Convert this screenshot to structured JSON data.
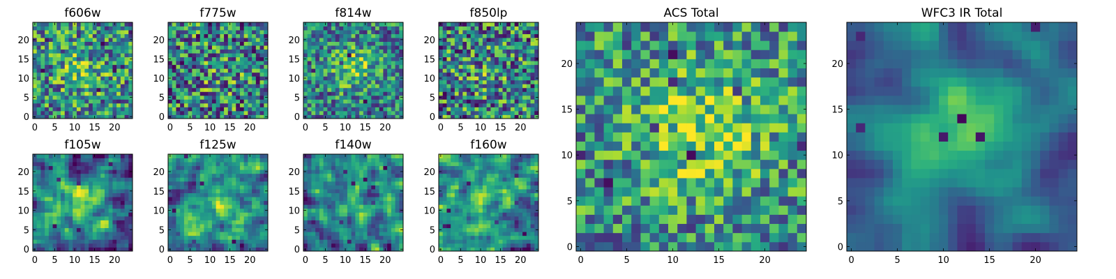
{
  "figure": {
    "colormap": "viridis",
    "colors": {
      "background": "#ffffff",
      "axis": "#000000"
    }
  },
  "chart_data": [
    {
      "id": "f606w",
      "type": "heatmap",
      "title": "f606w",
      "grid_size": 25,
      "xlim": [
        -0.5,
        24.5
      ],
      "ylim": [
        -0.5,
        24.5
      ],
      "xticks": [
        0,
        5,
        10,
        15,
        20
      ],
      "yticks": [
        0,
        5,
        10,
        15,
        20
      ],
      "pattern": {
        "seed": 11,
        "bias": 0.6,
        "noise": 0.4,
        "smooth": 0,
        "blob": [
          12,
          12,
          4,
          0.2
        ],
        "dark_cells": 18
      }
    },
    {
      "id": "f775w",
      "type": "heatmap",
      "title": "f775w",
      "grid_size": 25,
      "xlim": [
        -0.5,
        24.5
      ],
      "ylim": [
        -0.5,
        24.5
      ],
      "xticks": [
        0,
        5,
        10,
        15,
        20
      ],
      "yticks": [
        0,
        5,
        10,
        15,
        20
      ],
      "pattern": {
        "seed": 23,
        "bias": 0.55,
        "noise": 0.45,
        "smooth": 0,
        "blob": [
          12,
          12,
          4,
          0.1
        ],
        "dark_cells": 20
      }
    },
    {
      "id": "f814w",
      "type": "heatmap",
      "title": "f814w",
      "grid_size": 25,
      "xlim": [
        -0.5,
        24.5
      ],
      "ylim": [
        -0.5,
        24.5
      ],
      "xticks": [
        0,
        5,
        10,
        15,
        20
      ],
      "yticks": [
        0,
        5,
        10,
        15,
        20
      ],
      "pattern": {
        "seed": 37,
        "bias": 0.55,
        "noise": 0.35,
        "smooth": 0,
        "blob": [
          12,
          13,
          4,
          0.3
        ],
        "dark_cells": 14
      }
    },
    {
      "id": "f850lp",
      "type": "heatmap",
      "title": "f850lp",
      "grid_size": 25,
      "xlim": [
        -0.5,
        24.5
      ],
      "ylim": [
        -0.5,
        24.5
      ],
      "xticks": [
        0,
        5,
        10,
        15,
        20
      ],
      "yticks": [
        0,
        5,
        10,
        15,
        20
      ],
      "pattern": {
        "seed": 41,
        "bias": 0.55,
        "noise": 0.45,
        "smooth": 0,
        "blob": [
          12,
          12,
          4,
          0.1
        ],
        "dark_cells": 16
      }
    },
    {
      "id": "f105w",
      "type": "heatmap",
      "title": "f105w",
      "grid_size": 25,
      "xlim": [
        -0.5,
        24.5
      ],
      "ylim": [
        -0.5,
        24.5
      ],
      "xticks": [
        0,
        5,
        10,
        15,
        20
      ],
      "yticks": [
        0,
        5,
        10,
        15,
        20
      ],
      "pattern": {
        "seed": 53,
        "bias": 0.45,
        "noise": 0.5,
        "smooth": 1,
        "blob": [
          12,
          12,
          4,
          0.4
        ],
        "dark_cells": 8
      }
    },
    {
      "id": "f125w",
      "type": "heatmap",
      "title": "f125w",
      "grid_size": 25,
      "xlim": [
        -0.5,
        24.5
      ],
      "ylim": [
        -0.5,
        24.5
      ],
      "xticks": [
        0,
        5,
        10,
        15,
        20
      ],
      "yticks": [
        0,
        5,
        10,
        15,
        20
      ],
      "pattern": {
        "seed": 67,
        "bias": 0.55,
        "noise": 0.45,
        "smooth": 1,
        "blob": [
          12,
          12,
          4,
          0.2
        ],
        "dark_cells": 6
      }
    },
    {
      "id": "f140w",
      "type": "heatmap",
      "title": "f140w",
      "grid_size": 25,
      "xlim": [
        -0.5,
        24.5
      ],
      "ylim": [
        -0.5,
        24.5
      ],
      "xticks": [
        0,
        5,
        10,
        15,
        20
      ],
      "yticks": [
        0,
        5,
        10,
        15,
        20
      ],
      "pattern": {
        "seed": 79,
        "bias": 0.5,
        "noise": 0.5,
        "smooth": 1,
        "blob": [
          12,
          12,
          4,
          0.2
        ],
        "dark_cells": 10
      }
    },
    {
      "id": "f160w",
      "type": "heatmap",
      "title": "f160w",
      "grid_size": 25,
      "xlim": [
        -0.5,
        24.5
      ],
      "ylim": [
        -0.5,
        24.5
      ],
      "xticks": [
        0,
        5,
        10,
        15,
        20
      ],
      "yticks": [
        0,
        5,
        10,
        15,
        20
      ],
      "pattern": {
        "seed": 83,
        "bias": 0.45,
        "noise": 0.55,
        "smooth": 1,
        "blob": [
          12,
          12,
          4,
          0.35
        ],
        "dark_cells": 10
      }
    },
    {
      "id": "acs-total",
      "type": "heatmap",
      "title": "ACS Total",
      "grid_size": 25,
      "xlim": [
        -0.5,
        24.5
      ],
      "ylim": [
        -0.5,
        24.5
      ],
      "xticks": [
        0,
        5,
        10,
        15,
        20
      ],
      "yticks": [
        0,
        5,
        10,
        15,
        20
      ],
      "pattern": {
        "seed": 97,
        "bias": 0.6,
        "noise": 0.35,
        "smooth": 0,
        "blob": [
          13,
          13,
          5,
          0.3
        ],
        "dark_cells": 12
      }
    },
    {
      "id": "wfc3-ir-total",
      "type": "heatmap",
      "title": "WFC3 IR Total",
      "grid_size": 25,
      "xlim": [
        -0.5,
        24.5
      ],
      "ylim": [
        -0.5,
        24.5
      ],
      "xticks": [
        0,
        5,
        10,
        15,
        20
      ],
      "yticks": [
        0,
        5,
        10,
        15,
        20
      ],
      "pattern": {
        "seed": 101,
        "bias": 0.45,
        "noise": 0.25,
        "smooth": 2,
        "blob": [
          13,
          13,
          4,
          0.5
        ],
        "dark_cells": 6
      }
    }
  ]
}
